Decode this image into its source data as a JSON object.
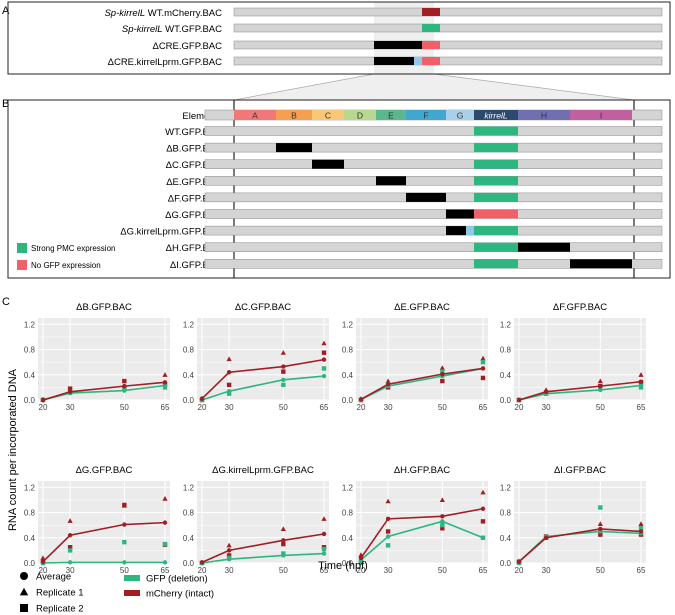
{
  "panel_labels": {
    "a": "A",
    "b": "B",
    "c": "C"
  },
  "panel_a": {
    "constructs": [
      {
        "italic": "Sp-kirrelL",
        "label": " WT.mCherry.BAC"
      },
      {
        "italic": "Sp-kirrelL",
        "label": " WT.GFP.BAC"
      },
      {
        "italic": "",
        "label": "ΔCRE.GFP.BAC"
      },
      {
        "italic": "",
        "label": "ΔCRE.kirrelLprm.GFP.BAC"
      }
    ]
  },
  "panel_b": {
    "header_label": "Elements",
    "elements": [
      "A",
      "B",
      "C",
      "D",
      "E",
      "F",
      "G",
      "kirrelL",
      "H",
      "I"
    ],
    "element_colors": [
      "#f07878",
      "#f5a050",
      "#f8c878",
      "#b8d890",
      "#5ab890",
      "#40a8d0",
      "#a8d0e8",
      "#2c4a6e",
      "#7070b0",
      "#c060a0"
    ],
    "constructs": [
      "WT.GFP.BAC",
      "ΔB.GFP.BAC",
      "ΔC.GFP.BAC",
      "ΔE.GFP.BAC",
      "ΔF.GFP.BAC",
      "ΔG.GFP.BAC",
      "ΔG.kirrelLprm.GFP.BAC",
      "ΔH.GFP.BAC",
      "ΔI.GFP.BAC"
    ],
    "legend": [
      {
        "label": "Strong PMC expression",
        "color": "#2db67f"
      },
      {
        "label": "No GFP expression",
        "color": "#ef6167"
      }
    ]
  },
  "colors": {
    "gfp": "#2db67f",
    "mcherry": "#a11e24",
    "bar_gray": "#d4d4d4",
    "deletion": "#000000",
    "promoter": "#8fc8e8",
    "element_bar": "#2c4a6e",
    "panel_bg": "#ebebeb"
  },
  "chart_data": [
    {
      "type": "line",
      "title": "ΔB.GFP.BAC",
      "x": [
        20,
        30,
        50,
        65
      ],
      "ylim": [
        0,
        1.3
      ],
      "series": [
        {
          "name": "GFP (deletion)",
          "values": [
            0.0,
            0.11,
            0.15,
            0.23
          ]
        },
        {
          "name": "mCherry (intact)",
          "values": [
            0.0,
            0.13,
            0.22,
            0.28
          ]
        }
      ]
    },
    {
      "type": "line",
      "title": "ΔC.GFP.BAC",
      "x": [
        20,
        30,
        50,
        65
      ],
      "ylim": [
        0,
        1.3
      ],
      "series": [
        {
          "name": "GFP (deletion)",
          "values": [
            0.0,
            0.14,
            0.32,
            0.38
          ]
        },
        {
          "name": "mCherry (intact)",
          "values": [
            0.02,
            0.44,
            0.53,
            0.64
          ]
        }
      ]
    },
    {
      "type": "line",
      "title": "ΔE.GFP.BAC",
      "x": [
        20,
        30,
        50,
        65
      ],
      "ylim": [
        0,
        1.3
      ],
      "series": [
        {
          "name": "GFP (deletion)",
          "values": [
            0.01,
            0.22,
            0.38,
            0.5
          ]
        },
        {
          "name": "mCherry (intact)",
          "values": [
            0.01,
            0.25,
            0.41,
            0.5
          ]
        }
      ]
    },
    {
      "type": "line",
      "title": "ΔF.GFP.BAC",
      "x": [
        20,
        30,
        50,
        65
      ],
      "ylim": [
        0,
        1.3
      ],
      "series": [
        {
          "name": "GFP (deletion)",
          "values": [
            0.0,
            0.1,
            0.16,
            0.23
          ]
        },
        {
          "name": "mCherry (intact)",
          "values": [
            0.0,
            0.13,
            0.22,
            0.29
          ]
        }
      ]
    },
    {
      "type": "line",
      "title": "ΔG.GFP.BAC",
      "x": [
        20,
        30,
        50,
        65
      ],
      "ylim": [
        0,
        1.3
      ],
      "series": [
        {
          "name": "GFP (deletion)",
          "values": [
            0.0,
            0.01,
            0.01,
            0.01
          ]
        },
        {
          "name": "mCherry (intact)",
          "values": [
            0.02,
            0.44,
            0.61,
            0.64
          ]
        }
      ]
    },
    {
      "type": "line",
      "title": "ΔG.kirrelLprm.GFP.BAC",
      "x": [
        20,
        30,
        50,
        65
      ],
      "ylim": [
        0,
        1.3
      ],
      "series": [
        {
          "name": "GFP (deletion)",
          "values": [
            0.0,
            0.06,
            0.12,
            0.15
          ]
        },
        {
          "name": "mCherry (intact)",
          "values": [
            0.01,
            0.2,
            0.36,
            0.46
          ]
        }
      ]
    },
    {
      "type": "line",
      "title": "ΔH.GFP.BAC",
      "x": [
        20,
        30,
        50,
        65
      ],
      "ylim": [
        0,
        1.3
      ],
      "series": [
        {
          "name": "GFP (deletion)",
          "values": [
            0.05,
            0.42,
            0.66,
            0.4
          ]
        },
        {
          "name": "mCherry (intact)",
          "values": [
            0.08,
            0.7,
            0.74,
            0.86
          ]
        }
      ]
    },
    {
      "type": "line",
      "title": "ΔI.GFP.BAC",
      "x": [
        20,
        30,
        50,
        65
      ],
      "ylim": [
        0,
        1.3
      ],
      "series": [
        {
          "name": "GFP (deletion)",
          "values": [
            0.02,
            0.42,
            0.5,
            0.47
          ]
        },
        {
          "name": "mCherry (intact)",
          "values": [
            0.02,
            0.4,
            0.54,
            0.5
          ]
        }
      ]
    }
  ],
  "x_ticks": [
    "20",
    "30",
    "50",
    "65"
  ],
  "y_ticks": [
    "0.0",
    "0.4",
    "0.8",
    "1.2"
  ],
  "y_label": "RNA count per incorporated DNA",
  "x_label": "Time (hpf)",
  "legend_shapes": [
    {
      "label": "Average",
      "shape": "circle"
    },
    {
      "label": "Replicate 1",
      "shape": "triangle"
    },
    {
      "label": "Replicate 2",
      "shape": "square"
    }
  ],
  "legend_series": [
    {
      "label": "GFP (deletion)",
      "color": "#2db67f"
    },
    {
      "label": "mCherry (intact)",
      "color": "#a11e24"
    }
  ]
}
